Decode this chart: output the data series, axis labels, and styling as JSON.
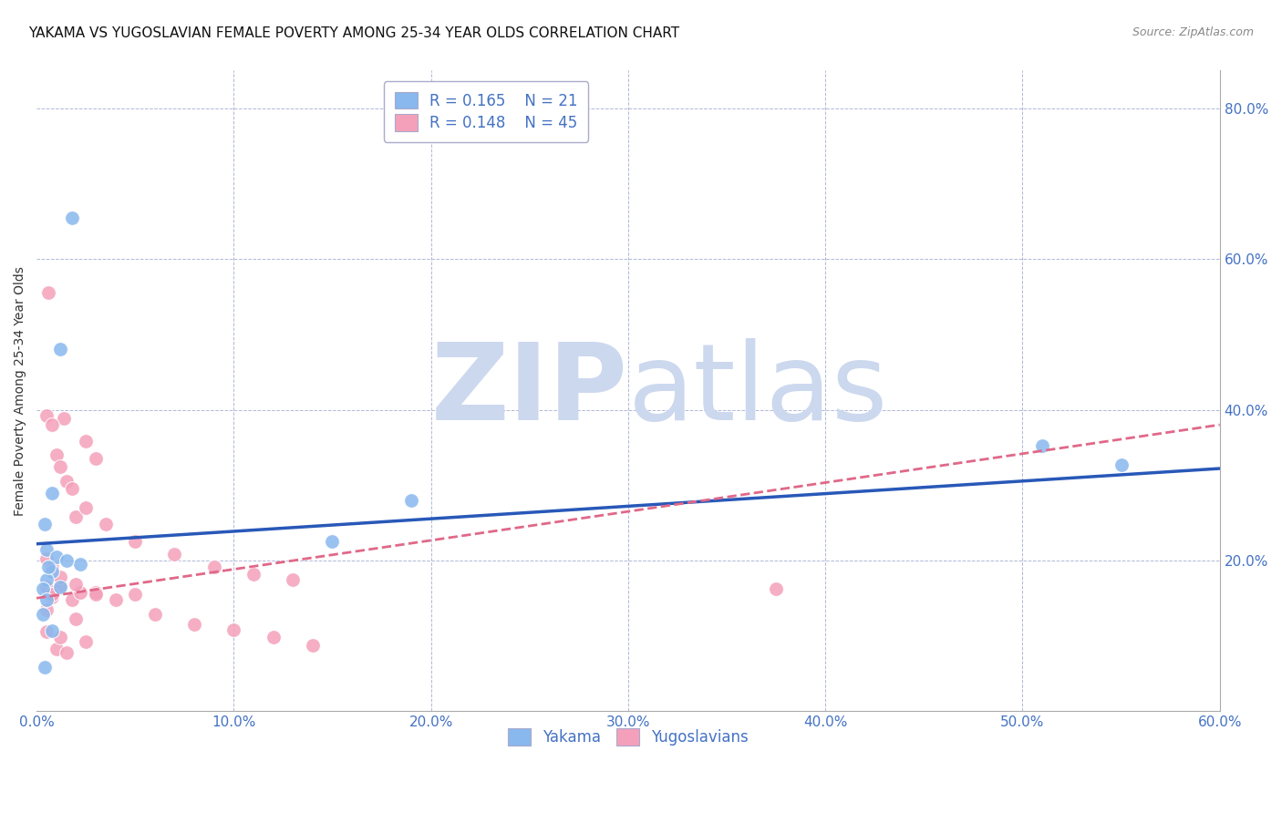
{
  "title": "YAKAMA VS YUGOSLAVIAN FEMALE POVERTY AMONG 25-34 YEAR OLDS CORRELATION CHART",
  "source": "Source: ZipAtlas.com",
  "ylabel": "Female Poverty Among 25-34 Year Olds",
  "xlim": [
    0.0,
    0.6
  ],
  "ylim": [
    0.0,
    0.85
  ],
  "xticks": [
    0.0,
    0.1,
    0.2,
    0.3,
    0.4,
    0.5,
    0.6
  ],
  "yticks_right": [
    0.2,
    0.4,
    0.6,
    0.8
  ],
  "grid_color": "#b0b8d8",
  "background_color": "#ffffff",
  "watermark_zip": "ZIP",
  "watermark_atlas": "atlas",
  "watermark_color": "#ccd8ee",
  "legend_r1": "R = 0.165",
  "legend_n1": "N = 21",
  "legend_r2": "R = 0.148",
  "legend_n2": "N = 45",
  "yakama_color": "#88b8ee",
  "yugoslavian_color": "#f4a0ba",
  "yakama_line_color": "#2858b8",
  "yugoslavian_line_color": "#e06888",
  "tick_color": "#4472c4",
  "title_fontsize": 11,
  "axis_label_fontsize": 10,
  "tick_fontsize": 11,
  "legend_fontsize": 12,
  "yakama_x": [
    0.018,
    0.012,
    0.008,
    0.005,
    0.01,
    0.022,
    0.015,
    0.008,
    0.005,
    0.003,
    0.19,
    0.51,
    0.55,
    0.005,
    0.003,
    0.008,
    0.012,
    0.15,
    0.004,
    0.004,
    0.006
  ],
  "yakama_y": [
    0.655,
    0.48,
    0.29,
    0.215,
    0.205,
    0.195,
    0.2,
    0.185,
    0.175,
    0.163,
    0.28,
    0.352,
    0.327,
    0.148,
    0.128,
    0.107,
    0.165,
    0.225,
    0.058,
    0.248,
    0.192
  ],
  "yugoslavian_x": [
    0.005,
    0.008,
    0.012,
    0.018,
    0.022,
    0.006,
    0.014,
    0.02,
    0.005,
    0.01,
    0.015,
    0.025,
    0.03,
    0.008,
    0.012,
    0.018,
    0.025,
    0.035,
    0.05,
    0.07,
    0.09,
    0.11,
    0.13,
    0.005,
    0.008,
    0.012,
    0.02,
    0.03,
    0.04,
    0.06,
    0.08,
    0.1,
    0.12,
    0.14,
    0.005,
    0.01,
    0.015,
    0.025,
    0.375,
    0.005,
    0.008,
    0.012,
    0.02,
    0.03,
    0.05
  ],
  "yugoslavian_y": [
    0.165,
    0.152,
    0.167,
    0.148,
    0.158,
    0.555,
    0.388,
    0.258,
    0.392,
    0.34,
    0.305,
    0.358,
    0.335,
    0.38,
    0.325,
    0.295,
    0.27,
    0.248,
    0.225,
    0.208,
    0.192,
    0.182,
    0.175,
    0.202,
    0.192,
    0.178,
    0.168,
    0.158,
    0.148,
    0.128,
    0.115,
    0.108,
    0.098,
    0.088,
    0.105,
    0.082,
    0.078,
    0.092,
    0.162,
    0.135,
    0.155,
    0.098,
    0.122,
    0.155,
    0.155
  ],
  "yakama_trend_x": [
    0.0,
    0.6
  ],
  "yakama_trend_y": [
    0.222,
    0.322
  ],
  "yugo_trend_x": [
    0.0,
    0.6
  ],
  "yugo_trend_y": [
    0.15,
    0.38
  ]
}
